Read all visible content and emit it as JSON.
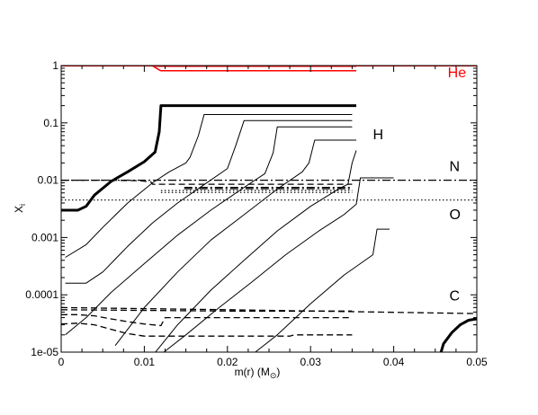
{
  "chart_data": {
    "type": "line",
    "title": "",
    "xlabel": "m(r) (M",
    "xlabel_sub": "⊙",
    "xlabel_close": ")",
    "ylabel": "X",
    "ylabel_sub": "i",
    "xlim": [
      0,
      0.05
    ],
    "ylim": [
      1e-05,
      1
    ],
    "yscale": "log",
    "grid": false,
    "x_ticks": [
      {
        "value": 0,
        "label": "0"
      },
      {
        "value": 0.01,
        "label": "0.01"
      },
      {
        "value": 0.02,
        "label": "0.02"
      },
      {
        "value": 0.03,
        "label": "0.03"
      },
      {
        "value": 0.04,
        "label": "0.04"
      },
      {
        "value": 0.05,
        "label": "0.05"
      }
    ],
    "y_ticks": [
      {
        "value": 1e-05,
        "label": "1e-05"
      },
      {
        "value": 0.0001,
        "label": "0.0001"
      },
      {
        "value": 0.001,
        "label": "0.001"
      },
      {
        "value": 0.01,
        "label": "0.01"
      },
      {
        "value": 0.1,
        "label": "0.1"
      },
      {
        "value": 1,
        "label": "1"
      }
    ],
    "annotations": [
      {
        "text": "He",
        "x": 0.0465,
        "y": 0.62,
        "color": "#ff0000"
      },
      {
        "text": "H",
        "x": 0.0375,
        "y": 0.052,
        "color": "#000000"
      },
      {
        "text": "N",
        "x": 0.0467,
        "y": 0.0145,
        "color": "#000000"
      },
      {
        "text": "O",
        "x": 0.0467,
        "y": 0.0021,
        "color": "#000000"
      },
      {
        "text": "C",
        "x": 0.0467,
        "y": 8e-05,
        "color": "#000000"
      }
    ],
    "series": [
      {
        "species": "He",
        "color": "#ff0000",
        "style": "solid",
        "width": 1.5,
        "x": [
          0,
          0.011,
          0.0118,
          0.0355
        ],
        "y": [
          0.99,
          0.99,
          0.97,
          0.97
        ]
      },
      {
        "species": "He",
        "color": "#ff0000",
        "style": "solid",
        "width": 1.5,
        "x": [
          0.011,
          0.0118,
          0.012,
          0.0355
        ],
        "y": [
          0.99,
          0.84,
          0.81,
          0.81
        ]
      },
      {
        "species": "He",
        "color": "#ff0000",
        "style": "solid",
        "width": 1.5,
        "x": [
          0.012,
          0.05
        ],
        "y": [
          0.99,
          0.99
        ]
      },
      {
        "species": "H",
        "color": "#000000",
        "style": "solid",
        "width": 3,
        "x": [
          0,
          0.002,
          0.003,
          0.004,
          0.006,
          0.008,
          0.01,
          0.0113,
          0.0118,
          0.012,
          0.0355
        ],
        "y": [
          0.003,
          0.003,
          0.0035,
          0.0055,
          0.0095,
          0.014,
          0.021,
          0.031,
          0.07,
          0.2,
          0.2
        ]
      },
      {
        "species": "H",
        "color": "#000000",
        "style": "solid",
        "width": 1,
        "x": [
          0.0005,
          0.003,
          0.005,
          0.008,
          0.011,
          0.013,
          0.015,
          0.0155,
          0.0165,
          0.0172,
          0.035
        ],
        "y": [
          0.00045,
          0.00075,
          0.0015,
          0.004,
          0.009,
          0.014,
          0.02,
          0.025,
          0.06,
          0.14,
          0.14
        ]
      },
      {
        "species": "H",
        "color": "#000000",
        "style": "solid",
        "width": 1,
        "x": [
          0.0005,
          0.003,
          0.005,
          0.008,
          0.011,
          0.014,
          0.017,
          0.02,
          0.021,
          0.022,
          0.035
        ],
        "y": [
          0.00016,
          0.00016,
          0.00025,
          0.0007,
          0.0018,
          0.004,
          0.008,
          0.016,
          0.04,
          0.11,
          0.11
        ]
      },
      {
        "species": "H",
        "color": "#000000",
        "style": "solid",
        "width": 1,
        "x": [
          0.0005,
          0.003,
          0.006,
          0.01,
          0.014,
          0.018,
          0.022,
          0.0245,
          0.0255,
          0.026,
          0.035
        ],
        "y": [
          2e-05,
          4e-05,
          0.00011,
          0.00035,
          0.0011,
          0.003,
          0.0075,
          0.013,
          0.03,
          0.085,
          0.085
        ]
      },
      {
        "species": "H",
        "color": "#000000",
        "style": "solid",
        "width": 1,
        "x": [
          0.0065,
          0.01,
          0.014,
          0.018,
          0.022,
          0.026,
          0.029,
          0.0298,
          0.0305,
          0.0355
        ],
        "y": [
          1.3e-05,
          6e-05,
          0.00025,
          0.0009,
          0.0025,
          0.007,
          0.014,
          0.02,
          0.05,
          0.05
        ]
      },
      {
        "species": "H",
        "color": "#000000",
        "style": "solid",
        "width": 1,
        "x": [
          0.0108,
          0.014,
          0.018,
          0.022,
          0.026,
          0.03,
          0.0335,
          0.0345,
          0.035,
          0.0355
        ],
        "y": [
          8e-06,
          3e-05,
          0.00012,
          0.0004,
          0.0013,
          0.0035,
          0.0072,
          0.0085,
          0.02,
          0.033
        ]
      },
      {
        "species": "H",
        "color": "#000000",
        "style": "solid",
        "width": 1,
        "x": [
          0.0115,
          0.015,
          0.019,
          0.023,
          0.027,
          0.031,
          0.034,
          0.0355,
          0.036,
          0.04
        ],
        "y": [
          8e-06,
          2e-05,
          6e-05,
          0.00017,
          0.0005,
          0.0013,
          0.0025,
          0.0038,
          0.011,
          0.011
        ]
      },
      {
        "species": "H",
        "color": "#000000",
        "style": "solid",
        "width": 1,
        "x": [
          0.0225,
          0.026,
          0.03,
          0.034,
          0.0375,
          0.038,
          0.0395
        ],
        "y": [
          8e-06,
          2e-05,
          7e-05,
          0.00022,
          0.0005,
          0.0014,
          0.0014
        ]
      },
      {
        "species": "H",
        "color": "#000000",
        "style": "solid",
        "width": 3,
        "x": [
          0.0455,
          0.046,
          0.047,
          0.048,
          0.049,
          0.05
        ],
        "y": [
          8e-06,
          1.4e-05,
          2.2e-05,
          3e-05,
          3.6e-05,
          3.8e-05
        ]
      },
      {
        "species": "N",
        "color": "#000000",
        "style": "dashdot",
        "width": 1.3,
        "x": [
          0,
          0.05
        ],
        "y": [
          0.01,
          0.01
        ]
      },
      {
        "species": "N",
        "color": "#000000",
        "style": "dashdot",
        "width": 1.3,
        "x": [
          0.0148,
          0.035
        ],
        "y": [
          0.0075,
          0.0075
        ]
      },
      {
        "species": "N",
        "color": "#000000",
        "style": "dashdot",
        "width": 1.3,
        "x": [
          0.0148,
          0.035
        ],
        "y": [
          0.0071,
          0.0071
        ]
      },
      {
        "species": "N",
        "color": "#000000",
        "style": "dashed",
        "width": 1.3,
        "x": [
          0,
          0.006,
          0.0095,
          0.0108,
          0.011,
          0.02,
          0.035
        ],
        "y": [
          0.01,
          0.01,
          0.0098,
          0.0093,
          0.0085,
          0.0085,
          0.0085
        ]
      },
      {
        "species": "O",
        "color": "#000000",
        "style": "dotted",
        "width": 1.2,
        "x": [
          0,
          0.05
        ],
        "y": [
          0.0045,
          0.0045
        ]
      },
      {
        "species": "O",
        "color": "#000000",
        "style": "dotted",
        "width": 1.2,
        "x": [
          0.012,
          0.035
        ],
        "y": [
          0.0061,
          0.0061
        ]
      },
      {
        "species": "O",
        "color": "#000000",
        "style": "dotted",
        "width": 1.2,
        "x": [
          0.012,
          0.035
        ],
        "y": [
          0.0066,
          0.0066
        ]
      },
      {
        "species": "C",
        "color": "#000000",
        "style": "dashed",
        "width": 1.3,
        "x": [
          0,
          0.02,
          0.05
        ],
        "y": [
          6e-05,
          5.5e-05,
          4.7e-05
        ]
      },
      {
        "species": "C",
        "color": "#000000",
        "style": "dashed",
        "width": 1.3,
        "x": [
          0,
          0.02,
          0.035
        ],
        "y": [
          5.5e-05,
          5.2e-05,
          5.2e-05
        ]
      },
      {
        "species": "C",
        "color": "#000000",
        "style": "dashed",
        "width": 1.3,
        "x": [
          0,
          0.002,
          0.004,
          0.006,
          0.008,
          0.01,
          0.012,
          0.0125,
          0.035
        ],
        "y": [
          4.5e-05,
          4.5e-05,
          4.3e-05,
          3.8e-05,
          3.4e-05,
          3.1e-05,
          2.9e-05,
          4e-05,
          4e-05
        ]
      },
      {
        "species": "C",
        "color": "#000000",
        "style": "dashed",
        "width": 1.3,
        "x": [
          0,
          0.002,
          0.004,
          0.006,
          0.008,
          0.01,
          0.015,
          0.02,
          0.025,
          0.0275,
          0.028,
          0.035
        ],
        "y": [
          3.1e-05,
          3.2e-05,
          3e-05,
          2.5e-05,
          2.1e-05,
          1.9e-05,
          1.9e-05,
          1.9e-05,
          1.9e-05,
          1.9e-05,
          2e-05,
          2e-05
        ]
      }
    ]
  }
}
